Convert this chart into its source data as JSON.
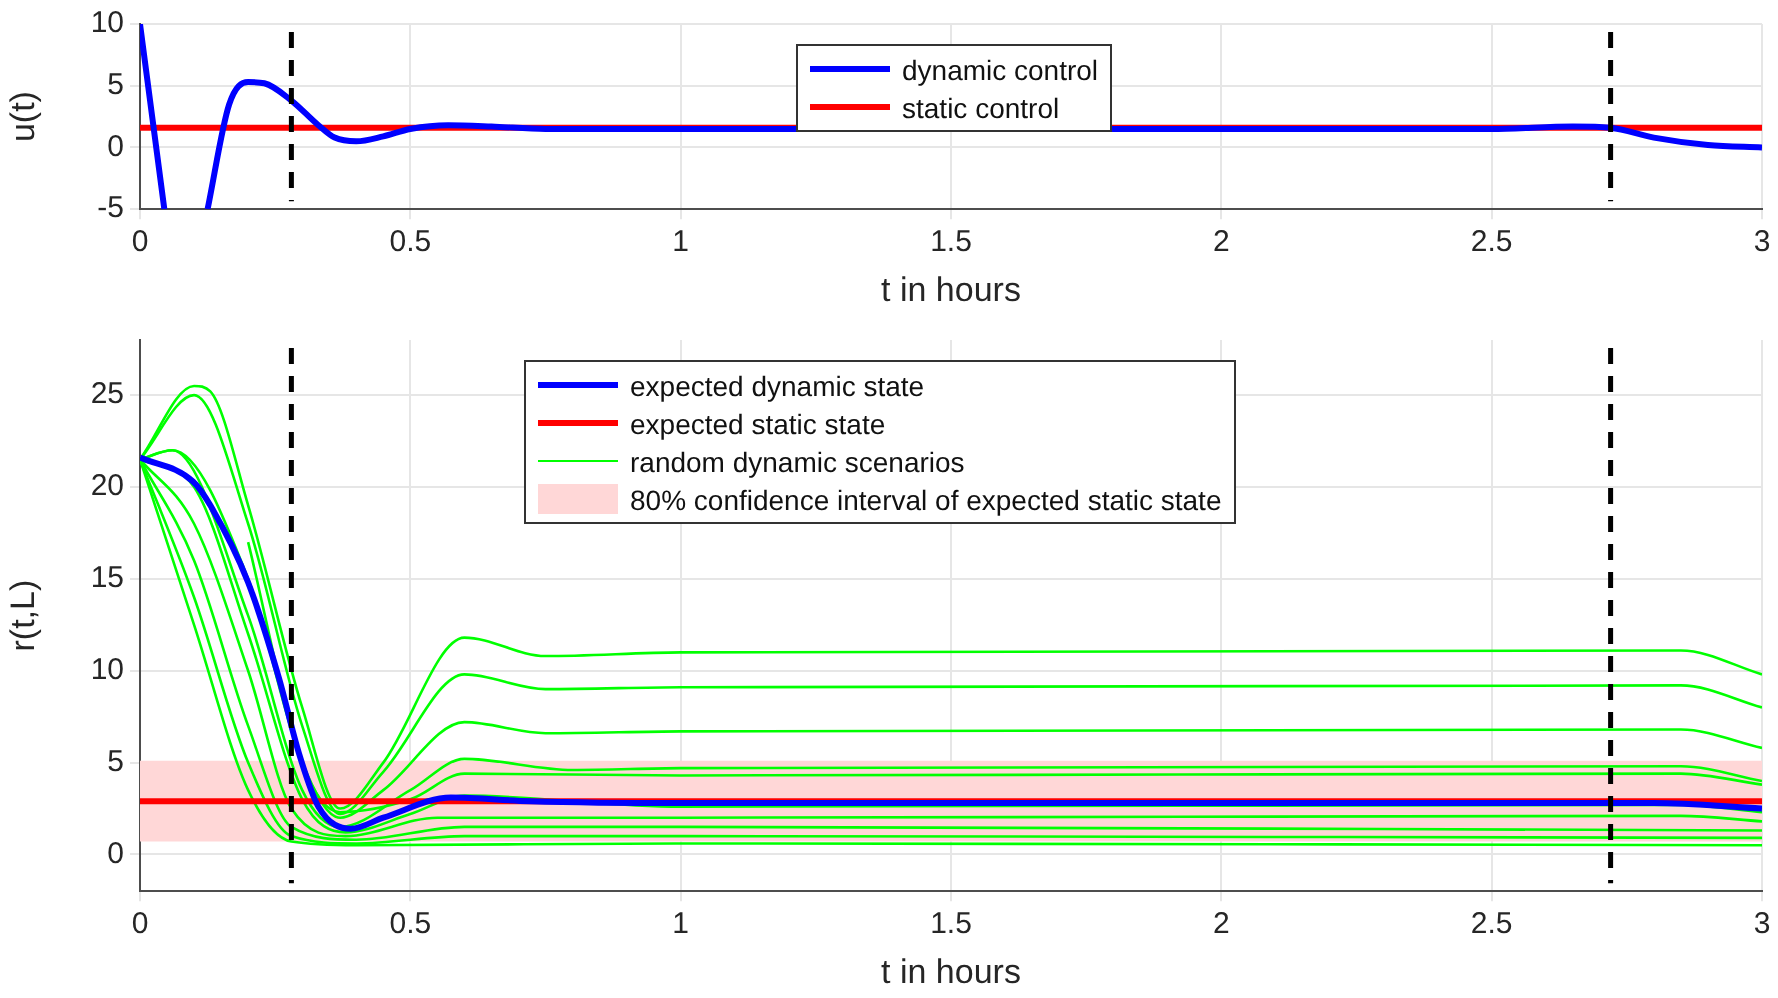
{
  "chart_data": [
    {
      "type": "line",
      "xlabel": "t in hours",
      "ylabel": "u(t)",
      "xlim": [
        0,
        3
      ],
      "xticks": [
        0,
        0.5,
        1,
        1.5,
        2,
        2.5,
        3
      ],
      "ylim": [
        -5,
        10
      ],
      "yticks": [
        -5,
        0,
        5,
        10
      ],
      "grid": true,
      "legend": "top",
      "series": [
        {
          "name": "dynamic control",
          "color": "#0000ff",
          "x": [
            0,
            0.045,
            0.08,
            0.125,
            0.165,
            0.2,
            0.23,
            0.28,
            0.33,
            0.36,
            0.4,
            0.45,
            0.5,
            0.57,
            0.65,
            0.75,
            1,
            2.5,
            2.65,
            2.72,
            2.8,
            2.9,
            3
          ],
          "values": [
            10,
            -5,
            null,
            -5,
            3.5,
            5.3,
            5.2,
            3.8,
            1.8,
            0.8,
            0.5,
            0.9,
            1.5,
            1.8,
            1.7,
            1.5,
            1.5,
            1.5,
            1.7,
            1.6,
            0.8,
            0.2,
            0
          ]
        },
        {
          "name": "static control",
          "color": "#ff0000",
          "x": [
            0,
            3
          ],
          "values": [
            1.6,
            1.6
          ]
        }
      ],
      "ref_lines": [
        {
          "axis": "x",
          "value": 0.28,
          "color": "#000000",
          "line_style": "dashed"
        },
        {
          "axis": "x",
          "value": 2.72,
          "color": "#000000",
          "line_style": "dashed"
        }
      ]
    },
    {
      "type": "line",
      "xlabel": "t in hours",
      "ylabel": "r(t,L)",
      "xlim": [
        0,
        3
      ],
      "xticks": [
        0,
        0.5,
        1,
        1.5,
        2,
        2.5,
        3
      ],
      "ylim": [
        -2,
        28
      ],
      "yticks": [
        0,
        5,
        10,
        15,
        20,
        25
      ],
      "grid": true,
      "legend": "top",
      "series": [
        {
          "name": "expected dynamic state",
          "color": "#0000ff",
          "x": [
            0,
            0.098,
            0.13,
            0.2,
            0.257,
            0.294,
            0.33,
            0.39,
            0.45,
            0.575,
            0.72,
            1,
            2.8,
            3
          ],
          "values": [
            21.6,
            20.3,
            19,
            14.8,
            9.6,
            5.5,
            2.6,
            1.4,
            2,
            3.1,
            2.9,
            2.8,
            2.8,
            2.5
          ]
        },
        {
          "name": "expected static state",
          "color": "#ff0000",
          "x": [
            0,
            3
          ],
          "values": [
            2.9,
            2.9
          ]
        },
        {
          "name": "random dynamic scenarios",
          "color": "#00ff00",
          "x": [
            0,
            0.1,
            0.13,
            0.2,
            0.3,
            0.37,
            0.45,
            0.6,
            0.75,
            1,
            2.85,
            3
          ],
          "values": [
            21.5,
            25.5,
            25.2,
            19,
            8,
            2.5,
            5,
            11.8,
            10.8,
            11,
            11.1,
            9.8
          ]
        },
        {
          "color": "#00ff00",
          "x": [
            0,
            0.1,
            0.2,
            0.3,
            0.37,
            0.45,
            0.6,
            0.75,
            1,
            2.85,
            3
          ],
          "values": [
            21.5,
            25,
            18,
            7,
            2.2,
            4.5,
            9.8,
            9,
            9.1,
            9.2,
            8
          ]
        },
        {
          "color": "#00ff00",
          "x": [
            0,
            0.06,
            0.2,
            0.3,
            0.37,
            0.45,
            0.6,
            0.75,
            1,
            2.85,
            3
          ],
          "values": [
            21.5,
            22,
            15,
            5,
            2,
            3.5,
            7.2,
            6.6,
            6.7,
            6.8,
            5.8
          ]
        },
        {
          "color": "#00ff00",
          "x": [
            0,
            0.06,
            0.2,
            0.3,
            0.37,
            0.5,
            0.6,
            0.8,
            1,
            2.85,
            3
          ],
          "values": [
            21.5,
            22,
            13,
            3.5,
            1.5,
            3.5,
            5.2,
            4.6,
            4.7,
            4.8,
            4
          ]
        },
        {
          "color": "#00ff00",
          "x": [
            0,
            0.1,
            0.2,
            0.3,
            0.38,
            0.5,
            0.6,
            1,
            2.85,
            3
          ],
          "values": [
            21.5,
            20,
            12,
            3,
            1.2,
            2.2,
            3.2,
            2.6,
            2.7,
            2.3
          ]
        },
        {
          "color": "#00ff00",
          "x": [
            0,
            0.1,
            0.2,
            0.28,
            0.38,
            0.55,
            1,
            2.85,
            3
          ],
          "values": [
            21.5,
            18,
            10,
            2.5,
            1,
            2,
            2,
            2.1,
            1.8
          ]
        },
        {
          "color": "#00ff00",
          "x": [
            0,
            0.1,
            0.2,
            0.28,
            0.4,
            0.6,
            1,
            3
          ],
          "values": [
            21.5,
            16,
            7,
            1.5,
            0.8,
            1.5,
            1.5,
            1.3
          ]
        },
        {
          "color": "#00ff00",
          "x": [
            0,
            0.1,
            0.2,
            0.28,
            0.4,
            0.6,
            1,
            3
          ],
          "values": [
            21.5,
            14,
            5,
            1,
            0.6,
            1,
            1,
            0.9
          ]
        },
        {
          "color": "#00ff00",
          "x": [
            0,
            0.1,
            0.2,
            0.28,
            0.4,
            1,
            3
          ],
          "values": [
            21.5,
            12.5,
            3.5,
            0.7,
            0.5,
            0.6,
            0.5
          ]
        },
        {
          "color": "#00ff00",
          "x": [
            0.2,
            0.3,
            0.37,
            0.5,
            0.6,
            1,
            2.85,
            3
          ],
          "values": [
            17,
            5,
            2.3,
            3,
            4.4,
            4.3,
            4.4,
            3.8
          ]
        }
      ],
      "bands": [
        {
          "axis": "y",
          "from": 0.7,
          "to": 5.1,
          "label": "80% confidence interval of expected static state",
          "color": "#ffd7d7"
        }
      ],
      "ref_lines": [
        {
          "axis": "x",
          "value": 0.28,
          "color": "#000000",
          "line_style": "dashed"
        },
        {
          "axis": "x",
          "value": 2.72,
          "color": "#000000",
          "line_style": "dashed"
        }
      ]
    }
  ]
}
